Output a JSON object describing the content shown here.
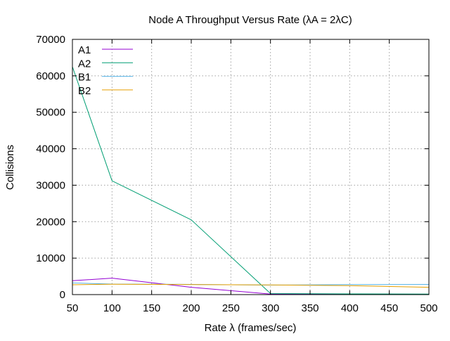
{
  "chart_data": {
    "type": "line",
    "title": "Node A Throughput Versus Rate (λA = 2λC)",
    "xlabel": "Rate λ (frames/sec)",
    "ylabel": "Collisions",
    "x": [
      50,
      100,
      200,
      300,
      400,
      500
    ],
    "xticks": [
      50,
      100,
      150,
      200,
      250,
      300,
      350,
      400,
      450,
      500
    ],
    "yticks": [
      0,
      10000,
      20000,
      30000,
      40000,
      50000,
      60000,
      70000
    ],
    "xlim": [
      50,
      500
    ],
    "ylim": [
      0,
      70000
    ],
    "grid": true,
    "legend_position": "top-left",
    "series": [
      {
        "name": "A1",
        "color": "#9400d3",
        "values": [
          3800,
          4500,
          2000,
          150,
          120,
          100
        ]
      },
      {
        "name": "A2",
        "color": "#009e73",
        "values": [
          62500,
          31200,
          20500,
          300,
          200,
          150
        ]
      },
      {
        "name": "B1",
        "color": "#56b4e9",
        "values": [
          3200,
          2900,
          2800,
          2600,
          2750,
          2800
        ]
      },
      {
        "name": "B2",
        "color": "#e69f00",
        "values": [
          2700,
          2850,
          2750,
          2650,
          2450,
          2000
        ]
      }
    ]
  }
}
